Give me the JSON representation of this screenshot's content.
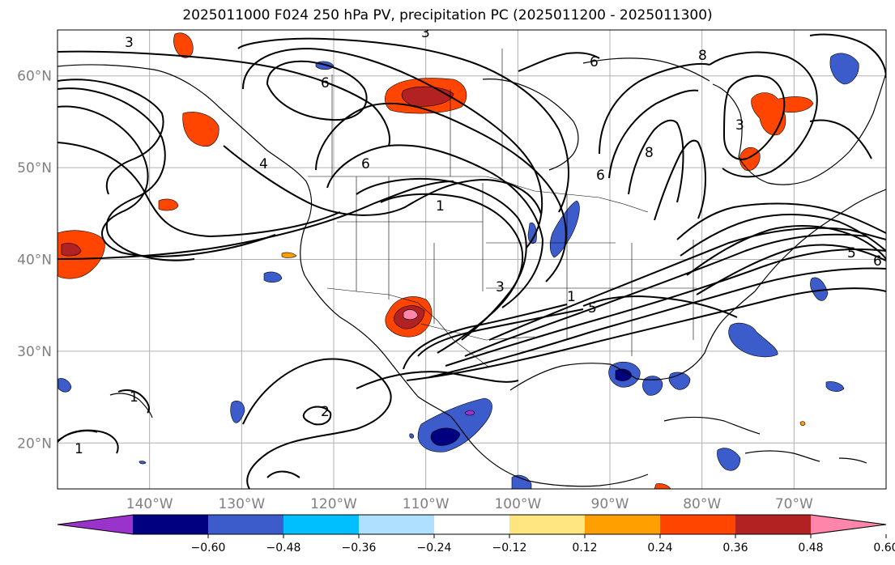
{
  "title": "2025011000 F024 250 hPa PV, precipitation PC (2025011200 - 2025011300)",
  "map": {
    "lon_range": [
      -150,
      -60
    ],
    "lat_range": [
      15,
      65
    ],
    "lat_ticks": [
      {
        "value": 20,
        "label": "20°N"
      },
      {
        "value": 30,
        "label": "30°N"
      },
      {
        "value": 40,
        "label": "40°N"
      },
      {
        "value": 50,
        "label": "50°N"
      },
      {
        "value": 60,
        "label": "60°N"
      }
    ],
    "lon_ticks": [
      {
        "value": -140,
        "label": "140°W"
      },
      {
        "value": -130,
        "label": "130°W"
      },
      {
        "value": -120,
        "label": "120°W"
      },
      {
        "value": -110,
        "label": "110°W"
      },
      {
        "value": -100,
        "label": "100°W"
      },
      {
        "value": -90,
        "label": "90°W"
      },
      {
        "value": -80,
        "label": "80°W"
      },
      {
        "value": -70,
        "label": "70°W"
      }
    ],
    "gridlines": true,
    "pv_contour_labels": [
      "1",
      "1",
      "1",
      "1",
      "2",
      "3",
      "3",
      "3",
      "3",
      "4",
      "5",
      "5",
      "6",
      "6",
      "6",
      "6",
      "6",
      "8",
      "8"
    ]
  },
  "colorbar": {
    "extend": "both",
    "tick_labels": [
      "−0.60",
      "−0.48",
      "−0.36",
      "−0.24",
      "−0.12",
      "0.12",
      "0.24",
      "0.36",
      "0.48",
      "0.60"
    ],
    "colors": [
      "#9a33cc",
      "#000080",
      "#3d5ccc",
      "#00bfff",
      "#b0e0ff",
      "#ffffff",
      "#ffe680",
      "#ff9f00",
      "#ff4500",
      "#b22222",
      "#ff85aa"
    ]
  }
}
